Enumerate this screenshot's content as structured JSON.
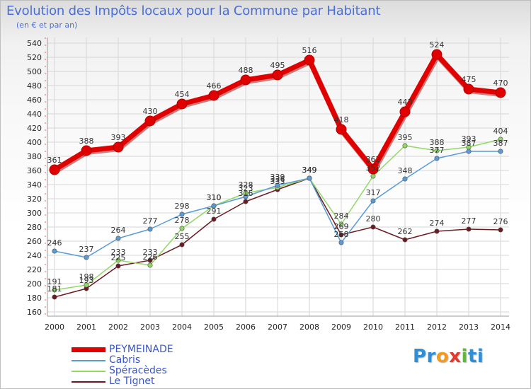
{
  "chart_data": {
    "type": "line",
    "title": "Evolution des Impôts locaux pour la Commune par Habitant",
    "subtitle": "(en € et par an)",
    "x": [
      2000,
      2001,
      2002,
      2003,
      2004,
      2005,
      2006,
      2007,
      2008,
      2009,
      2010,
      2011,
      2012,
      2013,
      2014
    ],
    "ylim": [
      160,
      540
    ],
    "yticks": [
      160,
      180,
      200,
      220,
      240,
      260,
      280,
      300,
      320,
      340,
      360,
      380,
      400,
      420,
      440,
      460,
      480,
      500,
      520,
      540
    ],
    "grid": true,
    "series": [
      {
        "name": "Le Tignet",
        "color": "#6b1a22",
        "values": [
          181,
          193,
          225,
          233,
          255,
          291,
          316,
          333,
          349,
          269,
          280,
          262,
          274,
          277,
          276
        ],
        "labels": [
          "181",
          "193",
          "225",
          "233",
          "255",
          "291",
          "316",
          "333",
          "349",
          "269",
          "280",
          "262",
          "274",
          "277",
          "276"
        ]
      },
      {
        "name": "Spéracèdes",
        "color": "#92d865",
        "values": [
          191,
          198,
          233,
          226,
          278,
          310,
          328,
          336,
          349,
          284,
          352,
          395,
          388,
          393,
          404
        ],
        "labels": [
          "191",
          "198",
          "233",
          "226",
          "278",
          "310",
          "328",
          "336",
          "349",
          "284",
          "352",
          "395",
          "388",
          "393",
          "404"
        ]
      },
      {
        "name": "Cabris",
        "color": "#5a9bd5",
        "values": [
          246,
          237,
          264,
          277,
          298,
          310,
          323,
          339,
          349,
          258,
          317,
          348,
          377,
          387,
          387
        ],
        "labels": [
          "246",
          "237",
          "264",
          "277",
          "298",
          "310",
          "323",
          "339",
          "349",
          "258",
          "317",
          "348",
          "377",
          "387",
          "387"
        ]
      },
      {
        "name": "PEYMEINADE",
        "color": "#e00000",
        "values": [
          361,
          388,
          393,
          430,
          454,
          466,
          488,
          495,
          516,
          418,
          362,
          443,
          524,
          475,
          470
        ],
        "labels": [
          "361",
          "388",
          "393",
          "430",
          "454",
          "466",
          "488",
          "495",
          "516",
          "418",
          "362",
          "443",
          "524",
          "475",
          "470"
        ]
      }
    ],
    "legend_order": [
      "PEYMEINADE",
      "Cabris",
      "Spéracèdes",
      "Le Tignet"
    ],
    "legend_position": "bottom-left"
  },
  "legend": {
    "peymeinade": "PEYMEINADE",
    "cabris": "Cabris",
    "speracedes": "Spéracèdes",
    "le_tignet": "Le Tignet"
  },
  "logo": {
    "text_parts": [
      "Pr",
      "o",
      "x",
      "i",
      "ti"
    ],
    "colors": [
      "#2e8fd6",
      "#f39b1e",
      "#e23a2c",
      "#62b83a",
      "#2e8fd6"
    ]
  }
}
